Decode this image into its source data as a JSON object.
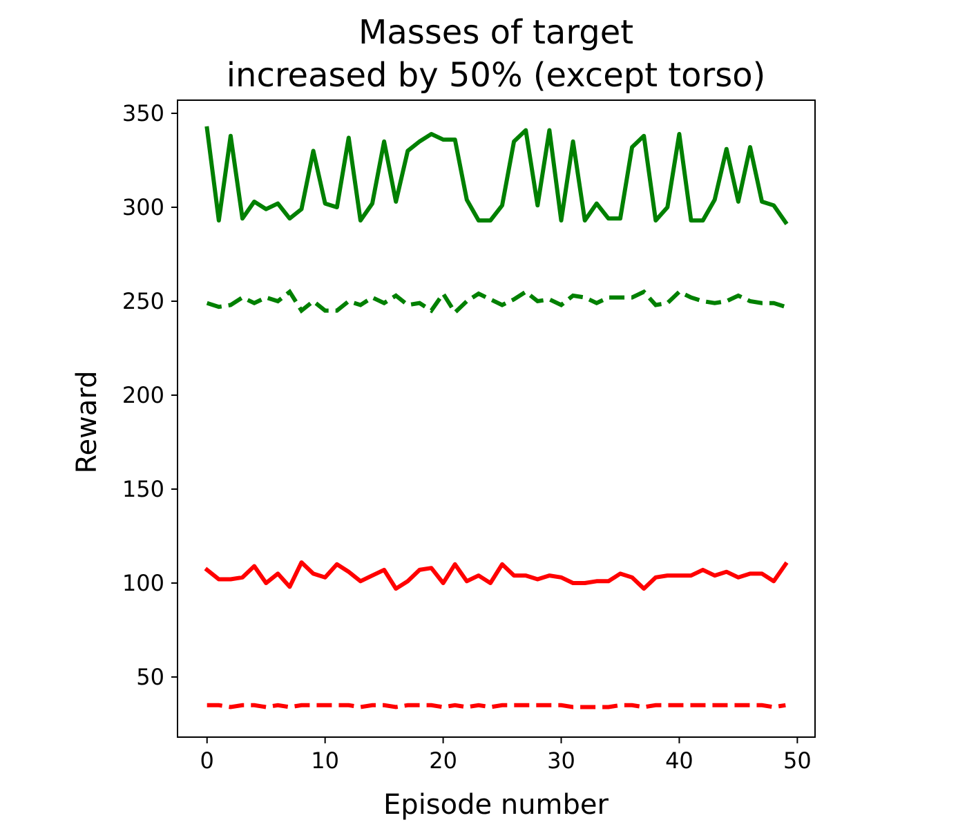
{
  "chart_data": {
    "type": "line",
    "title_line1": "Masses of target",
    "title_line2": "increased by 50% (except torso)",
    "xlabel": "Episode number",
    "ylabel": "Reward",
    "xlim": [
      -2.5,
      51.5
    ],
    "ylim": [
      18,
      357
    ],
    "xticks": [
      0,
      10,
      20,
      30,
      40,
      50
    ],
    "xtick_labels": [
      "0",
      "10",
      "20",
      "30",
      "40",
      "50"
    ],
    "yticks": [
      50,
      100,
      150,
      200,
      250,
      300,
      350
    ],
    "ytick_labels": [
      "50",
      "100",
      "150",
      "200",
      "250",
      "300",
      "350"
    ],
    "grid": false,
    "legend": "none",
    "x": [
      0,
      1,
      2,
      3,
      4,
      5,
      6,
      7,
      8,
      9,
      10,
      11,
      12,
      13,
      14,
      15,
      16,
      17,
      18,
      19,
      20,
      21,
      22,
      23,
      24,
      25,
      26,
      27,
      28,
      29,
      30,
      31,
      32,
      33,
      34,
      35,
      36,
      37,
      38,
      39,
      40,
      41,
      42,
      43,
      44,
      45,
      46,
      47,
      48,
      49
    ],
    "series": [
      {
        "color": "#008000",
        "style": "solid",
        "values": [
          342,
          293,
          338,
          294,
          303,
          299,
          302,
          294,
          299,
          330,
          302,
          300,
          337,
          293,
          302,
          335,
          303,
          330,
          335,
          339,
          336,
          336,
          304,
          293,
          293,
          301,
          335,
          341,
          301,
          341,
          293,
          335,
          293,
          302,
          294,
          294,
          332,
          338,
          293,
          300,
          339,
          293,
          293,
          304,
          331,
          303,
          332,
          303,
          301,
          292
        ]
      },
      {
        "color": "#008000",
        "style": "dashed",
        "values": [
          249,
          247,
          248,
          252,
          249,
          252,
          250,
          255,
          245,
          250,
          245,
          245,
          250,
          248,
          252,
          249,
          253,
          248,
          249,
          245,
          254,
          244,
          250,
          254,
          251,
          248,
          251,
          255,
          250,
          251,
          248,
          253,
          252,
          249,
          252,
          252,
          252,
          255,
          248,
          249,
          255,
          252,
          250,
          249,
          250,
          253,
          250,
          249,
          249,
          247
        ]
      },
      {
        "color": "#ff0000",
        "style": "solid",
        "values": [
          107,
          102,
          102,
          103,
          109,
          100,
          105,
          98,
          111,
          105,
          103,
          110,
          106,
          101,
          104,
          107,
          97,
          101,
          107,
          108,
          100,
          110,
          101,
          104,
          100,
          110,
          104,
          104,
          102,
          104,
          103,
          100,
          100,
          101,
          101,
          105,
          103,
          97,
          103,
          104,
          104,
          104,
          107,
          104,
          106,
          103,
          105,
          105,
          101,
          110
        ]
      },
      {
        "color": "#ff0000",
        "style": "dashed",
        "values": [
          35,
          35,
          34,
          35,
          35,
          34,
          35,
          34,
          35,
          35,
          35,
          35,
          35,
          34,
          35,
          35,
          34,
          35,
          35,
          35,
          34,
          35,
          34,
          35,
          34,
          35,
          35,
          35,
          35,
          35,
          35,
          34,
          34,
          34,
          34,
          35,
          35,
          34,
          35,
          35,
          35,
          35,
          35,
          35,
          35,
          35,
          35,
          35,
          34,
          35
        ]
      }
    ]
  }
}
